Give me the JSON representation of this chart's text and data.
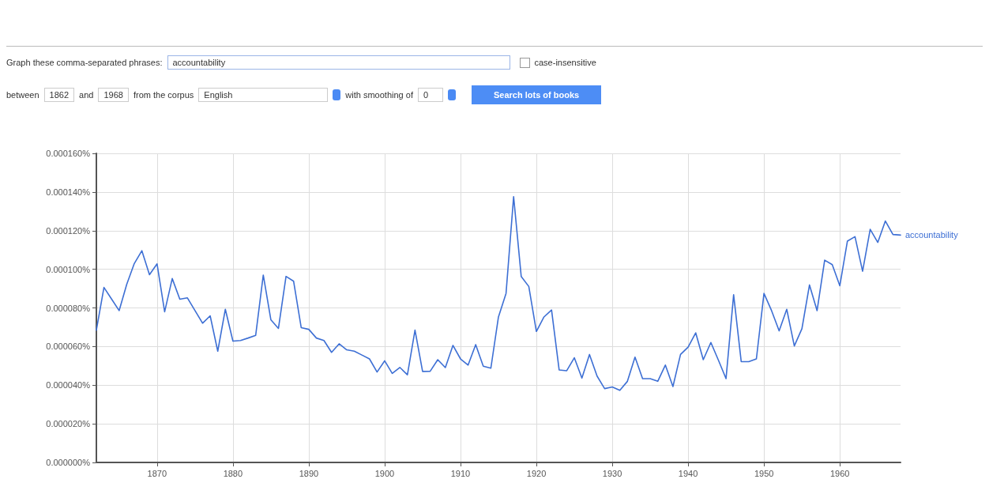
{
  "chart_data": {
    "type": "line",
    "annotations": [
      "Graph these comma-separated phrases:",
      "accountability",
      "case-insensitive",
      "between",
      "1862",
      "and",
      "1968",
      "from the corpus",
      "English",
      "with smoothing of",
      "0",
      "Search lots of books"
    ],
    "x": [
      1862,
      1863,
      1864,
      1865,
      1866,
      1867,
      1868,
      1869,
      1870,
      1871,
      1872,
      1873,
      1874,
      1875,
      1876,
      1877,
      1878,
      1879,
      1880,
      1881,
      1882,
      1883,
      1884,
      1885,
      1886,
      1887,
      1888,
      1889,
      1890,
      1891,
      1892,
      1893,
      1894,
      1895,
      1896,
      1897,
      1898,
      1899,
      1900,
      1901,
      1902,
      1903,
      1904,
      1905,
      1906,
      1907,
      1908,
      1909,
      1910,
      1911,
      1912,
      1913,
      1914,
      1915,
      1916,
      1917,
      1918,
      1919,
      1920,
      1921,
      1922,
      1923,
      1924,
      1925,
      1926,
      1927,
      1928,
      1929,
      1930,
      1931,
      1932,
      1933,
      1934,
      1935,
      1936,
      1937,
      1938,
      1939,
      1940,
      1941,
      1942,
      1943,
      1944,
      1945,
      1946,
      1947,
      1948,
      1949,
      1950,
      1951,
      1952,
      1953,
      1954,
      1955,
      1956,
      1957,
      1958,
      1959,
      1960,
      1961,
      1962,
      1963,
      1964,
      1965,
      1966,
      1967,
      1968
    ],
    "series": [
      {
        "name": "accountability",
        "color": "#3d6fd4",
        "values": [
          6.85e-05,
          9.06e-05,
          8.46e-05,
          7.86e-05,
          9.22e-05,
          0.000103,
          0.0001096,
          9.72e-05,
          0.0001028,
          7.8e-05,
          9.52e-05,
          8.45e-05,
          8.52e-05,
          7.86e-05,
          7.21e-05,
          7.59e-05,
          5.76e-05,
          7.93e-05,
          6.28e-05,
          6.31e-05,
          6.44e-05,
          6.58e-05,
          9.7e-05,
          7.39e-05,
          6.94e-05,
          9.63e-05,
          9.38e-05,
          6.98e-05,
          6.89e-05,
          6.44e-05,
          6.31e-05,
          5.7e-05,
          6.14e-05,
          5.83e-05,
          5.76e-05,
          5.56e-05,
          5.36e-05,
          4.68e-05,
          5.26e-05,
          4.61e-05,
          4.92e-05,
          4.54e-05,
          6.85e-05,
          4.71e-05,
          4.72e-05,
          5.32e-05,
          4.91e-05,
          6.06e-05,
          5.36e-05,
          5.04e-05,
          6.1e-05,
          4.98e-05,
          4.88e-05,
          7.53e-05,
          8.75e-05,
          0.0001376,
          9.63e-05,
          9.11e-05,
          6.78e-05,
          7.53e-05,
          7.89e-05,
          4.79e-05,
          4.75e-05,
          5.42e-05,
          4.37e-05,
          5.59e-05,
          4.47e-05,
          3.82e-05,
          3.91e-05,
          3.73e-05,
          4.2e-05,
          5.45e-05,
          4.34e-05,
          4.34e-05,
          4.2e-05,
          5.04e-05,
          3.93e-05,
          5.59e-05,
          5.97e-05,
          6.71e-05,
          5.32e-05,
          6.21e-05,
          5.29e-05,
          4.34e-05,
          8.68e-05,
          5.22e-05,
          5.22e-05,
          5.36e-05,
          8.75e-05,
          7.86e-05,
          6.81e-05,
          7.93e-05,
          6.03e-05,
          6.92e-05,
          9.19e-05,
          7.86e-05,
          0.0001047,
          0.0001024,
          9.15e-05,
          0.0001146,
          0.0001169,
          9.9e-05,
          0.0001207,
          0.0001139,
          0.000125,
          0.000118,
          0.0001177
        ]
      }
    ],
    "xlim": [
      1862,
      1968
    ],
    "xticks": [
      1870,
      1880,
      1890,
      1900,
      1910,
      1920,
      1930,
      1940,
      1950,
      1960
    ],
    "ylim": [
      0,
      0.00016
    ],
    "yticks": [
      {
        "value": 0,
        "label": "0.000000%"
      },
      {
        "value": 2e-05,
        "label": "0.000020%"
      },
      {
        "value": 4e-05,
        "label": "0.000040%"
      },
      {
        "value": 6e-05,
        "label": "0.000060%"
      },
      {
        "value": 8e-05,
        "label": "0.000080%"
      },
      {
        "value": 0.0001,
        "label": "0.000100%"
      },
      {
        "value": 0.00012,
        "label": "0.000120%"
      },
      {
        "value": 0.00014,
        "label": "0.000140%"
      },
      {
        "value": 0.00016,
        "label": "0.000160%"
      }
    ],
    "grid": true,
    "marker": "none",
    "line_style": "solid"
  }
}
